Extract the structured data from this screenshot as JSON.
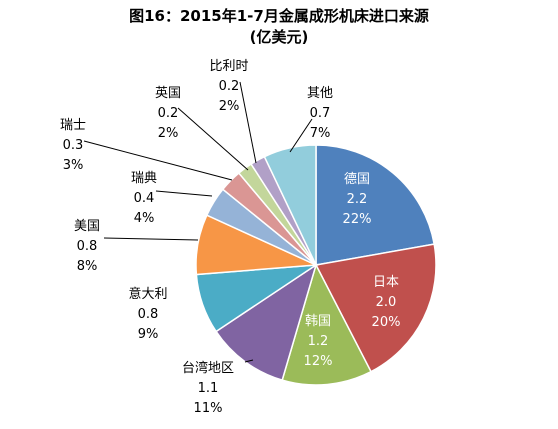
{
  "chart_data": {
    "type": "pie",
    "title": "图16：2015年1-7月金属成形机床进口来源",
    "subtitle": "(亿美元)",
    "legend": "none",
    "slices": [
      {
        "name": "德国",
        "value": 2.2,
        "value_label": "2.2",
        "pct_label": "22%",
        "color": "#4F81BD",
        "label_inside": true
      },
      {
        "name": "日本",
        "value": 2.0,
        "value_label": "2.0",
        "pct_label": "20%",
        "color": "#C0504D",
        "label_inside": true
      },
      {
        "name": "韩国",
        "value": 1.2,
        "value_label": "1.2",
        "pct_label": "12%",
        "color": "#9BBB59",
        "label_inside": true
      },
      {
        "name": "台湾地区",
        "value": 1.1,
        "value_label": "1.1",
        "pct_label": "11%",
        "color": "#8064A2",
        "label_inside": false
      },
      {
        "name": "意大利",
        "value": 0.8,
        "value_label": "0.8",
        "pct_label": "9%",
        "color": "#4BACC6",
        "label_inside": false
      },
      {
        "name": "美国",
        "value": 0.8,
        "value_label": "0.8",
        "pct_label": "8%",
        "color": "#F79646",
        "label_inside": false
      },
      {
        "name": "瑞典",
        "value": 0.4,
        "value_label": "0.4",
        "pct_label": "4%",
        "color": "#95B3D7",
        "label_inside": false
      },
      {
        "name": "瑞士",
        "value": 0.3,
        "value_label": "0.3",
        "pct_label": "3%",
        "color": "#DA9694",
        "label_inside": false
      },
      {
        "name": "英国",
        "value": 0.2,
        "value_label": "0.2",
        "pct_label": "2%",
        "color": "#C3D69B",
        "label_inside": false
      },
      {
        "name": "比利时",
        "value": 0.2,
        "value_label": "0.2",
        "pct_label": "2%",
        "color": "#B1A0C7",
        "label_inside": false
      },
      {
        "name": "其他",
        "value": 0.7,
        "value_label": "0.7",
        "pct_label": "7%",
        "color": "#92CDDC",
        "label_inside": false
      }
    ]
  }
}
